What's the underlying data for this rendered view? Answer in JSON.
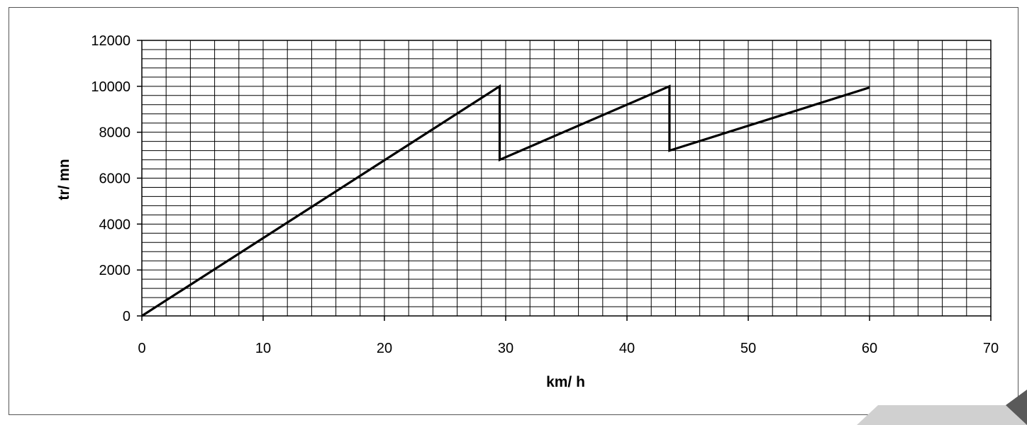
{
  "chart_data": {
    "type": "line",
    "title": "",
    "xlabel": "km/ h",
    "ylabel": "tr/ mn",
    "xlim": [
      0,
      70
    ],
    "ylim": [
      0,
      12000
    ],
    "x_ticks": [
      0,
      10,
      20,
      30,
      40,
      50,
      60,
      70
    ],
    "y_ticks": [
      0,
      2000,
      4000,
      6000,
      8000,
      10000,
      12000
    ],
    "x_minor_step": 2,
    "y_minor_step": 400,
    "grid": true,
    "legend": "none",
    "series": [
      {
        "x": [
          0,
          29.5,
          29.5,
          43.5,
          43.5,
          60
        ],
        "y": [
          0,
          10000,
          6800,
          10000,
          7200,
          9950
        ],
        "color": "#000000"
      }
    ]
  },
  "colors": {
    "grid": "#000000",
    "line": "#000000",
    "frame": "#555555",
    "page_curl_light": "#d0d0d0",
    "page_curl_dark": "#5a5a5a"
  }
}
